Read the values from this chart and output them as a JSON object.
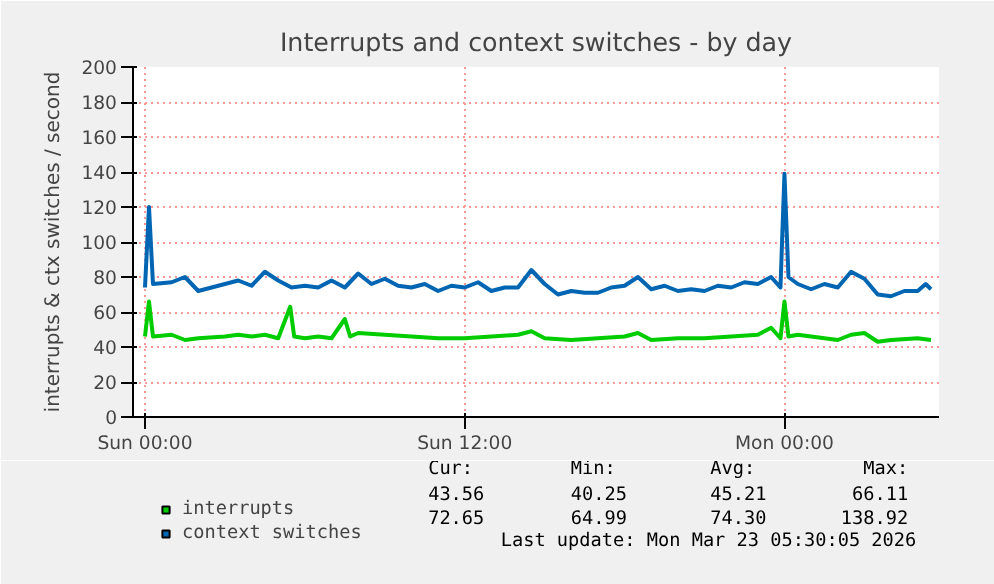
{
  "chart_data": {
    "type": "line",
    "title": "Interrupts and context switches - by day",
    "ylabel": "interrupts & ctx switches / second",
    "xlim": [
      "2026-03-21T23:33",
      "2026-03-23T05:48"
    ],
    "xticks": [
      {
        "value": "2026-03-22T00:00",
        "label": "Sun 00:00"
      },
      {
        "value": "2026-03-22T12:00",
        "label": "Sun 12:00"
      },
      {
        "value": "2026-03-23T00:00",
        "label": "Mon 00:00"
      }
    ],
    "ylim": [
      0,
      200
    ],
    "yticks": [
      0,
      20,
      40,
      60,
      80,
      100,
      120,
      140,
      160,
      180,
      200
    ],
    "grid": true,
    "legend": "bottom",
    "series": [
      {
        "name": "interrupts",
        "color": "#00cc00",
        "x": [
          "2026-03-22T00:00",
          "2026-03-22T00:09",
          "2026-03-22T00:18",
          "2026-03-22T01:00",
          "2026-03-22T01:30",
          "2026-03-22T02:00",
          "2026-03-22T03:00",
          "2026-03-22T03:30",
          "2026-03-22T04:00",
          "2026-03-22T04:30",
          "2026-03-22T05:00",
          "2026-03-22T05:27",
          "2026-03-22T05:36",
          "2026-03-22T06:00",
          "2026-03-22T06:30",
          "2026-03-22T07:00",
          "2026-03-22T07:30",
          "2026-03-22T07:42",
          "2026-03-22T08:00",
          "2026-03-22T09:00",
          "2026-03-22T10:00",
          "2026-03-22T11:00",
          "2026-03-22T12:00",
          "2026-03-22T13:00",
          "2026-03-22T14:00",
          "2026-03-22T14:30",
          "2026-03-22T15:00",
          "2026-03-22T16:00",
          "2026-03-22T17:00",
          "2026-03-22T18:00",
          "2026-03-22T18:30",
          "2026-03-22T19:00",
          "2026-03-22T20:00",
          "2026-03-22T21:00",
          "2026-03-22T22:00",
          "2026-03-22T23:00",
          "2026-03-22T23:30",
          "2026-03-22T23:51",
          "2026-03-23T00:00",
          "2026-03-23T00:09",
          "2026-03-23T00:30",
          "2026-03-23T01:00",
          "2026-03-23T02:00",
          "2026-03-23T02:30",
          "2026-03-23T03:00",
          "2026-03-23T03:30",
          "2026-03-23T04:00",
          "2026-03-23T05:00",
          "2026-03-23T05:30"
        ],
        "values": [
          46,
          66,
          46,
          47,
          44,
          45,
          46,
          47,
          46,
          47,
          45,
          63,
          46,
          45,
          46,
          45,
          56,
          46,
          48,
          47,
          46,
          45,
          45,
          46,
          47,
          49,
          45,
          44,
          45,
          46,
          48,
          44,
          45,
          45,
          46,
          47,
          51,
          45,
          66,
          46,
          47,
          46,
          44,
          47,
          48,
          43,
          44,
          45,
          44
        ]
      },
      {
        "name": "context switches",
        "color": "#0066b3",
        "x": [
          "2026-03-22T00:00",
          "2026-03-22T00:09",
          "2026-03-22T00:18",
          "2026-03-22T01:00",
          "2026-03-22T01:30",
          "2026-03-22T02:00",
          "2026-03-22T02:30",
          "2026-03-22T03:00",
          "2026-03-22T03:30",
          "2026-03-22T04:00",
          "2026-03-22T04:30",
          "2026-03-22T05:00",
          "2026-03-22T05:30",
          "2026-03-22T06:00",
          "2026-03-22T06:30",
          "2026-03-22T07:00",
          "2026-03-22T07:30",
          "2026-03-22T08:00",
          "2026-03-22T08:30",
          "2026-03-22T09:00",
          "2026-03-22T09:30",
          "2026-03-22T10:00",
          "2026-03-22T10:30",
          "2026-03-22T11:00",
          "2026-03-22T11:30",
          "2026-03-22T12:00",
          "2026-03-22T12:30",
          "2026-03-22T13:00",
          "2026-03-22T13:30",
          "2026-03-22T14:00",
          "2026-03-22T14:30",
          "2026-03-22T15:00",
          "2026-03-22T15:30",
          "2026-03-22T16:00",
          "2026-03-22T16:30",
          "2026-03-22T17:00",
          "2026-03-22T17:30",
          "2026-03-22T18:00",
          "2026-03-22T18:30",
          "2026-03-22T19:00",
          "2026-03-22T19:30",
          "2026-03-22T20:00",
          "2026-03-22T20:30",
          "2026-03-22T21:00",
          "2026-03-22T21:30",
          "2026-03-22T22:00",
          "2026-03-22T22:30",
          "2026-03-22T23:00",
          "2026-03-22T23:30",
          "2026-03-22T23:51",
          "2026-03-23T00:00",
          "2026-03-23T00:09",
          "2026-03-23T00:30",
          "2026-03-23T01:00",
          "2026-03-23T01:30",
          "2026-03-23T02:00",
          "2026-03-23T02:30",
          "2026-03-23T03:00",
          "2026-03-23T03:30",
          "2026-03-23T04:00",
          "2026-03-23T04:30",
          "2026-03-23T05:00",
          "2026-03-23T05:18",
          "2026-03-23T05:30"
        ],
        "values": [
          74,
          120,
          76,
          77,
          80,
          72,
          74,
          76,
          78,
          75,
          83,
          78,
          74,
          75,
          74,
          78,
          74,
          82,
          76,
          79,
          75,
          74,
          76,
          72,
          75,
          74,
          77,
          72,
          74,
          74,
          84,
          76,
          70,
          72,
          71,
          71,
          74,
          75,
          80,
          73,
          75,
          72,
          73,
          72,
          75,
          74,
          77,
          76,
          80,
          74,
          139,
          80,
          76,
          73,
          76,
          74,
          83,
          79,
          70,
          69,
          72,
          72,
          76,
          73
        ]
      }
    ],
    "annotations": [
      "Cur:",
      "Min:",
      "Avg:",
      "Max:",
      "43.56",
      "40.25",
      "45.21",
      "66.11",
      "72.65",
      "64.99",
      "74.30",
      "138.92",
      "Last update: Mon Mar 23 05:30:05 2026"
    ]
  }
}
